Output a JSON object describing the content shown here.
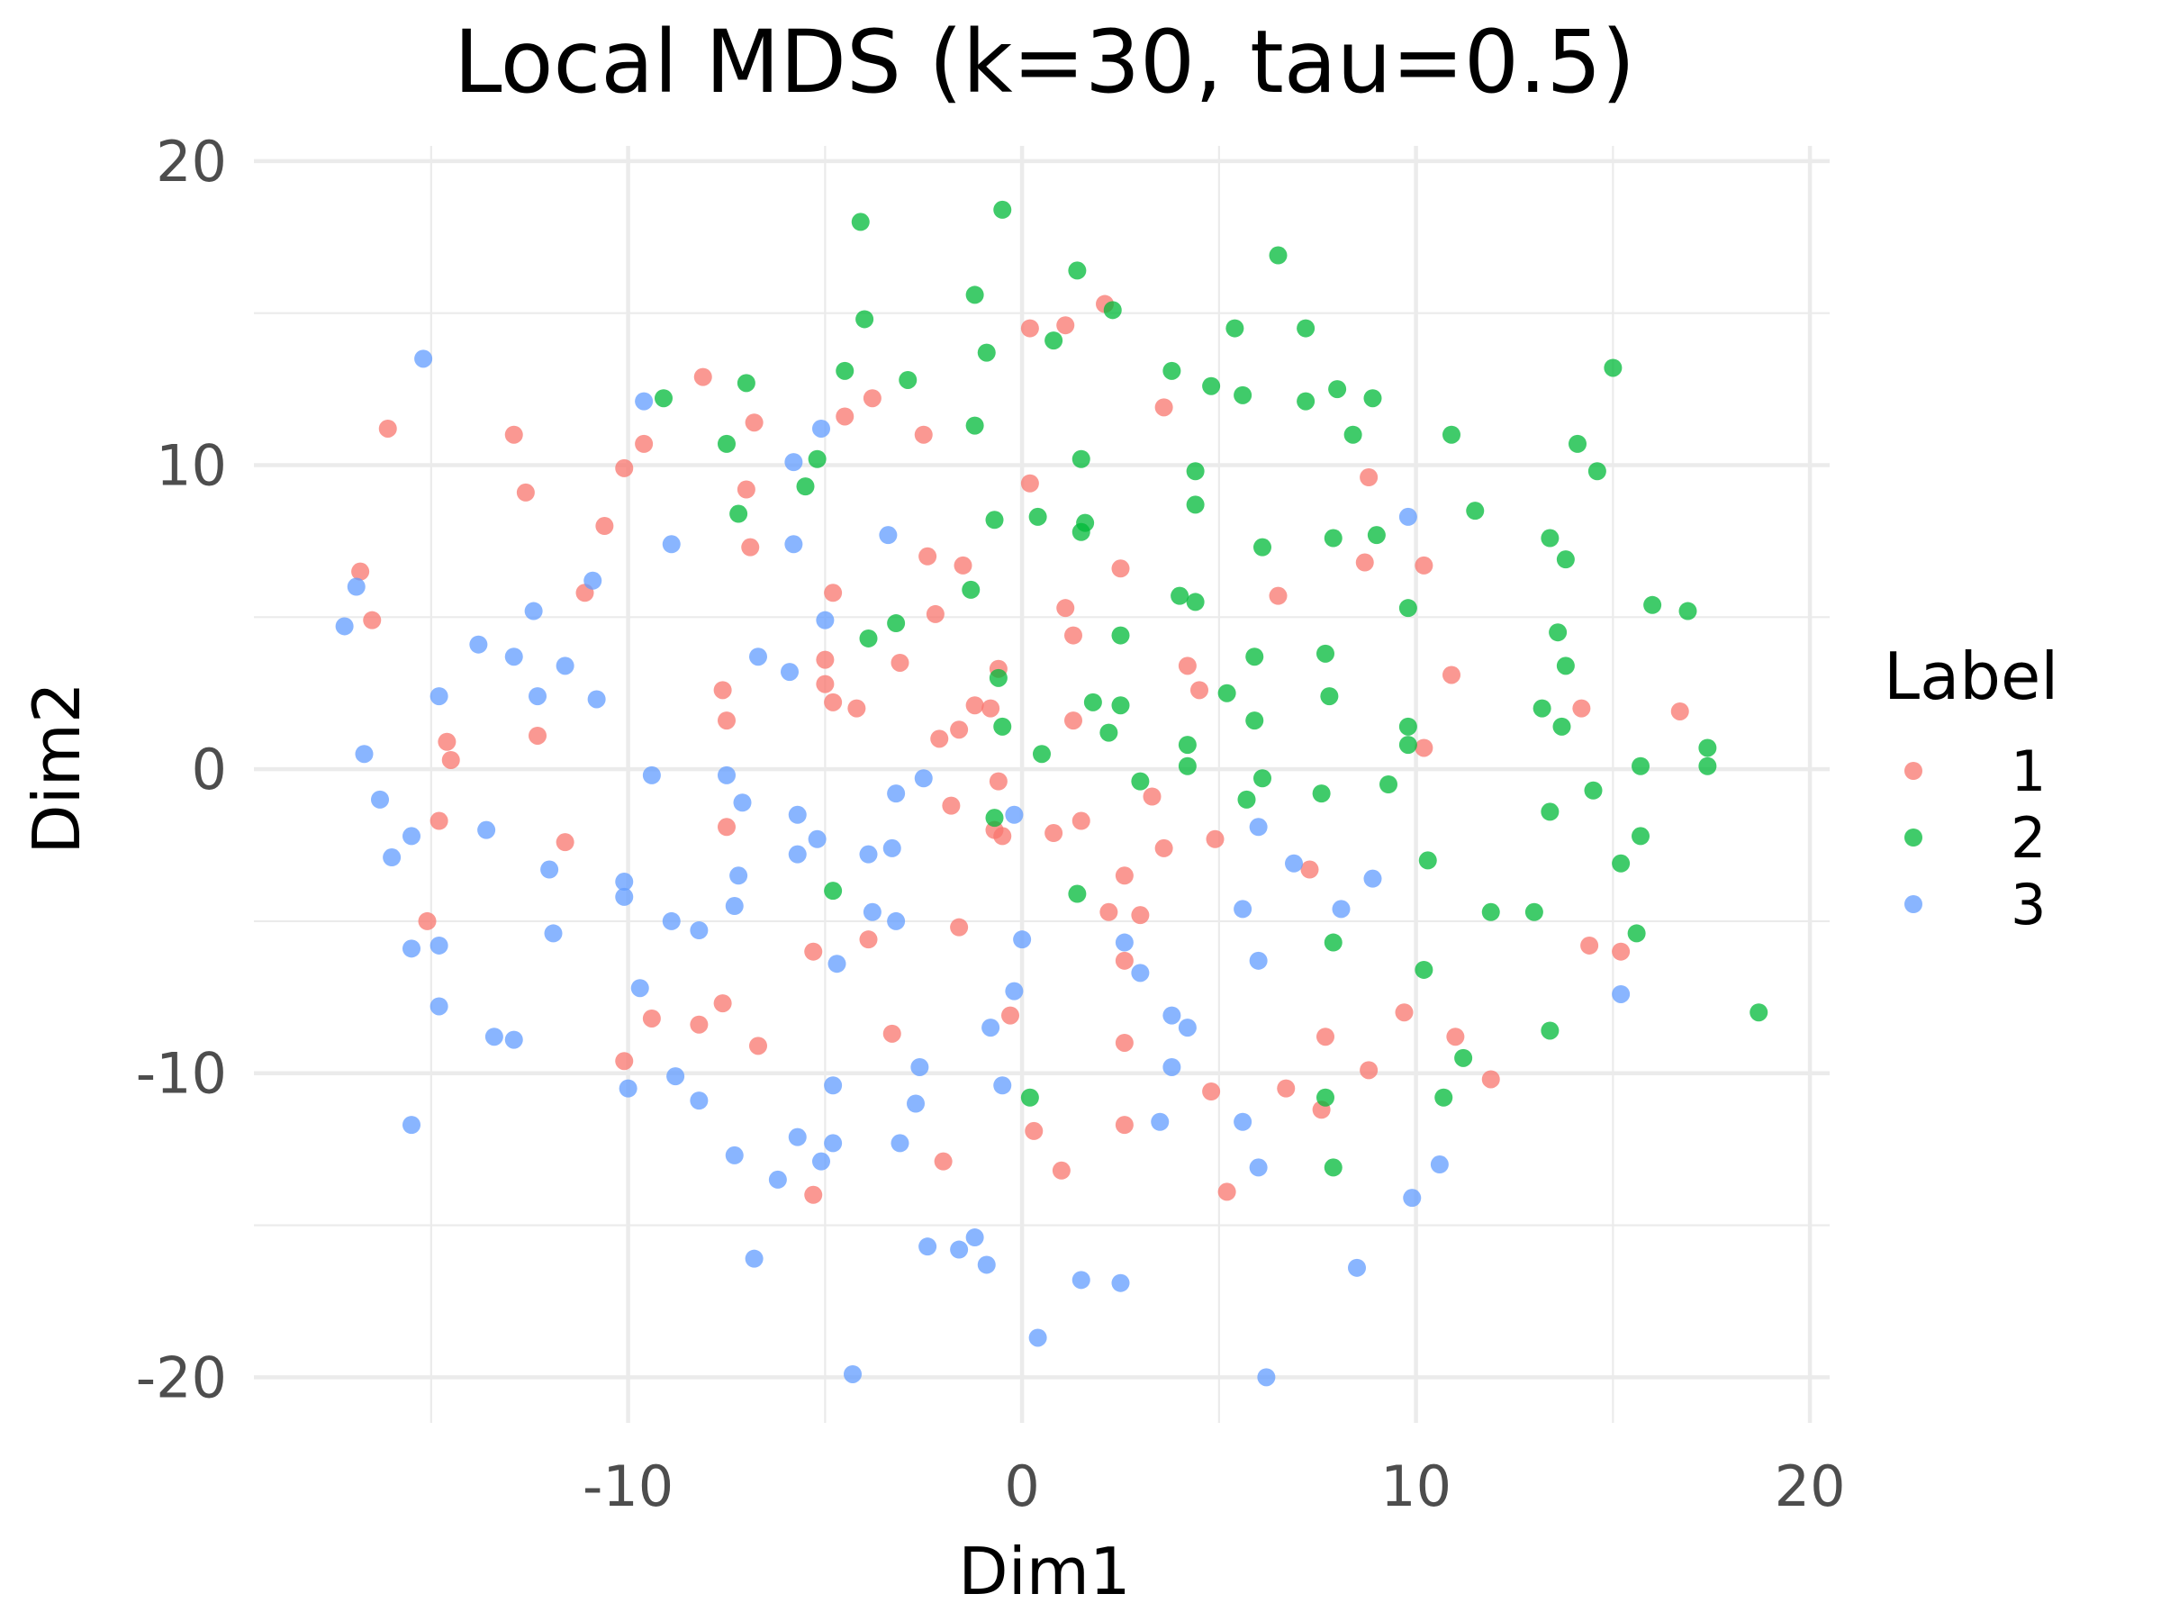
{
  "chart_data": {
    "type": "scatter",
    "title": "Local MDS (k=30, tau=0.5)",
    "xlabel": "Dim1",
    "ylabel": "Dim2",
    "xlim": [
      -19.5,
      20.5
    ],
    "ylim": [
      -21.5,
      20.5
    ],
    "xticks": [
      -10,
      0,
      10,
      20
    ],
    "yticks": [
      -20,
      -10,
      0,
      10,
      20
    ],
    "xtick_labels": [
      "-10",
      "0",
      "10",
      "20"
    ],
    "ytick_labels": [
      "-20",
      "-10",
      "0",
      "10",
      "20"
    ],
    "grid": true,
    "legend": {
      "title": "Label",
      "position": "right"
    },
    "series": [
      {
        "name": "1",
        "color": "#F8766D",
        "points": [
          [
            -16.8,
            6.5
          ],
          [
            -16.5,
            4.9
          ],
          [
            -16.1,
            11.2
          ],
          [
            -14.6,
            0.9
          ],
          [
            -14.5,
            0.3
          ],
          [
            -14.8,
            -1.7
          ],
          [
            -15.1,
            -5.0
          ],
          [
            -12.9,
            11.0
          ],
          [
            -12.6,
            9.1
          ],
          [
            -12.3,
            1.1
          ],
          [
            -11.6,
            -2.4
          ],
          [
            -11.1,
            5.8
          ],
          [
            -10.6,
            8.0
          ],
          [
            -10.1,
            9.9
          ],
          [
            -9.6,
            10.7
          ],
          [
            -10.1,
            -9.6
          ],
          [
            -9.4,
            -8.2
          ],
          [
            -8.1,
            12.9
          ],
          [
            -8.2,
            -8.4
          ],
          [
            -7.6,
            2.6
          ],
          [
            -7.5,
            1.6
          ],
          [
            -7.5,
            -1.9
          ],
          [
            -7.6,
            -7.7
          ],
          [
            -7.0,
            9.2
          ],
          [
            -6.9,
            7.3
          ],
          [
            -6.8,
            11.4
          ],
          [
            -6.7,
            -9.1
          ],
          [
            -5.3,
            -6.0
          ],
          [
            -5.3,
            -14.0
          ],
          [
            -5.0,
            2.8
          ],
          [
            -5.0,
            3.6
          ],
          [
            -4.8,
            2.2
          ],
          [
            -4.8,
            5.8
          ],
          [
            -4.5,
            11.6
          ],
          [
            -4.2,
            2.0
          ],
          [
            -3.8,
            12.2
          ],
          [
            -3.9,
            -5.6
          ],
          [
            -3.3,
            -8.7
          ],
          [
            -3.1,
            3.5
          ],
          [
            -2.5,
            11.0
          ],
          [
            -2.4,
            7.0
          ],
          [
            -2.2,
            5.1
          ],
          [
            -2.1,
            1.0
          ],
          [
            -2.0,
            -12.9
          ],
          [
            -1.8,
            -1.2
          ],
          [
            -1.6,
            1.3
          ],
          [
            -1.6,
            -5.2
          ],
          [
            -1.5,
            6.7
          ],
          [
            -1.2,
            2.1
          ],
          [
            -0.8,
            2.0
          ],
          [
            -0.7,
            -2.0
          ],
          [
            -0.6,
            -0.4
          ],
          [
            -0.6,
            3.3
          ],
          [
            -0.5,
            -2.2
          ],
          [
            -0.3,
            -8.1
          ],
          [
            0.2,
            9.4
          ],
          [
            0.2,
            14.5
          ],
          [
            0.3,
            -11.9
          ],
          [
            0.8,
            -2.1
          ],
          [
            1.0,
            -13.2
          ],
          [
            1.1,
            5.3
          ],
          [
            1.1,
            14.6
          ],
          [
            1.3,
            1.6
          ],
          [
            1.3,
            4.4
          ],
          [
            1.5,
            -1.7
          ],
          [
            2.1,
            15.3
          ],
          [
            2.2,
            -4.7
          ],
          [
            2.5,
            6.6
          ],
          [
            2.6,
            -3.5
          ],
          [
            2.6,
            -6.3
          ],
          [
            2.6,
            -9.0
          ],
          [
            2.6,
            -11.7
          ],
          [
            3.0,
            -4.8
          ],
          [
            3.3,
            -0.9
          ],
          [
            3.6,
            11.9
          ],
          [
            3.6,
            -2.6
          ],
          [
            4.2,
            3.4
          ],
          [
            4.5,
            2.6
          ],
          [
            4.9,
            -2.3
          ],
          [
            4.8,
            -10.6
          ],
          [
            5.2,
            -13.9
          ],
          [
            6.5,
            5.7
          ],
          [
            6.7,
            -10.5
          ],
          [
            7.3,
            -3.3
          ],
          [
            7.6,
            -11.2
          ],
          [
            7.7,
            -8.8
          ],
          [
            8.7,
            6.8
          ],
          [
            8.8,
            9.6
          ],
          [
            8.8,
            -9.9
          ],
          [
            9.7,
            -8.0
          ],
          [
            10.2,
            6.7
          ],
          [
            10.2,
            0.7
          ],
          [
            10.9,
            3.1
          ],
          [
            11.0,
            -8.8
          ],
          [
            11.9,
            -10.2
          ],
          [
            14.2,
            2.0
          ],
          [
            14.4,
            -5.8
          ],
          [
            15.2,
            -6.0
          ],
          [
            16.7,
            1.9
          ]
        ]
      },
      {
        "name": "2",
        "color": "#00BA38",
        "points": [
          [
            -4.1,
            18.0
          ],
          [
            -0.5,
            18.4
          ],
          [
            6.5,
            16.9
          ],
          [
            1.4,
            16.4
          ],
          [
            -1.2,
            15.6
          ],
          [
            2.3,
            15.1
          ],
          [
            -4.0,
            14.8
          ],
          [
            5.4,
            14.5
          ],
          [
            7.2,
            14.5
          ],
          [
            0.8,
            14.1
          ],
          [
            -0.9,
            13.7
          ],
          [
            -4.5,
            13.1
          ],
          [
            3.8,
            13.1
          ],
          [
            15.0,
            13.2
          ],
          [
            -2.9,
            12.8
          ],
          [
            -7.0,
            12.7
          ],
          [
            4.8,
            12.6
          ],
          [
            8.0,
            12.5
          ],
          [
            5.6,
            12.3
          ],
          [
            8.9,
            12.2
          ],
          [
            -9.1,
            12.2
          ],
          [
            7.2,
            12.1
          ],
          [
            -7.5,
            10.7
          ],
          [
            -1.2,
            11.3
          ],
          [
            8.4,
            11.0
          ],
          [
            10.9,
            11.0
          ],
          [
            14.1,
            10.7
          ],
          [
            -5.2,
            10.2
          ],
          [
            1.5,
            10.2
          ],
          [
            4.4,
            9.8
          ],
          [
            14.6,
            9.8
          ],
          [
            -5.5,
            9.3
          ],
          [
            4.4,
            8.7
          ],
          [
            -7.2,
            8.4
          ],
          [
            -0.7,
            8.2
          ],
          [
            0.4,
            8.3
          ],
          [
            1.6,
            8.1
          ],
          [
            1.5,
            7.8
          ],
          [
            11.5,
            8.5
          ],
          [
            9.0,
            7.7
          ],
          [
            7.9,
            7.6
          ],
          [
            13.4,
            7.6
          ],
          [
            6.1,
            7.3
          ],
          [
            13.8,
            6.9
          ],
          [
            -1.3,
            5.9
          ],
          [
            4.0,
            5.7
          ],
          [
            4.4,
            5.5
          ],
          [
            9.8,
            5.3
          ],
          [
            16.0,
            5.4
          ],
          [
            16.9,
            5.2
          ],
          [
            -3.2,
            4.8
          ],
          [
            -3.9,
            4.3
          ],
          [
            2.5,
            4.4
          ],
          [
            13.6,
            4.5
          ],
          [
            5.9,
            3.7
          ],
          [
            7.7,
            3.8
          ],
          [
            13.8,
            3.4
          ],
          [
            -0.6,
            3.0
          ],
          [
            5.2,
            2.5
          ],
          [
            7.8,
            2.4
          ],
          [
            1.8,
            2.2
          ],
          [
            2.5,
            2.1
          ],
          [
            13.2,
            2.0
          ],
          [
            -0.5,
            1.4
          ],
          [
            5.9,
            1.6
          ],
          [
            9.8,
            1.4
          ],
          [
            13.7,
            1.4
          ],
          [
            2.2,
            1.2
          ],
          [
            4.2,
            0.8
          ],
          [
            9.8,
            0.8
          ],
          [
            17.4,
            0.7
          ],
          [
            0.5,
            0.5
          ],
          [
            4.2,
            0.1
          ],
          [
            15.7,
            0.1
          ],
          [
            17.4,
            0.1
          ],
          [
            3.0,
            -0.4
          ],
          [
            6.1,
            -0.3
          ],
          [
            9.3,
            -0.5
          ],
          [
            14.5,
            -0.7
          ],
          [
            7.6,
            -0.8
          ],
          [
            5.7,
            -1.0
          ],
          [
            13.4,
            -1.4
          ],
          [
            -0.7,
            -1.6
          ],
          [
            15.7,
            -2.2
          ],
          [
            10.3,
            -3.0
          ],
          [
            15.2,
            -3.1
          ],
          [
            -4.8,
            -4.0
          ],
          [
            1.4,
            -4.1
          ],
          [
            11.9,
            -4.7
          ],
          [
            13.0,
            -4.7
          ],
          [
            15.6,
            -5.4
          ],
          [
            7.9,
            -5.7
          ],
          [
            10.2,
            -6.6
          ],
          [
            18.7,
            -8.0
          ],
          [
            13.4,
            -8.6
          ],
          [
            11.2,
            -9.5
          ],
          [
            0.2,
            -10.8
          ],
          [
            7.7,
            -10.8
          ],
          [
            10.7,
            -10.8
          ],
          [
            7.9,
            -13.1
          ]
        ]
      },
      {
        "name": "3",
        "color": "#619CFF",
        "points": [
          [
            -15.2,
            13.5
          ],
          [
            -9.6,
            12.1
          ],
          [
            -5.1,
            11.2
          ],
          [
            -5.8,
            10.1
          ],
          [
            9.8,
            8.3
          ],
          [
            -8.9,
            7.4
          ],
          [
            -5.8,
            7.4
          ],
          [
            -3.4,
            7.7
          ],
          [
            -17.2,
            4.7
          ],
          [
            -16.9,
            6.0
          ],
          [
            -10.9,
            6.2
          ],
          [
            -12.4,
            5.2
          ],
          [
            -13.8,
            4.1
          ],
          [
            -12.9,
            3.7
          ],
          [
            -11.6,
            3.4
          ],
          [
            -5.0,
            4.9
          ],
          [
            -6.7,
            3.7
          ],
          [
            -5.9,
            3.2
          ],
          [
            -14.8,
            2.4
          ],
          [
            -12.3,
            2.4
          ],
          [
            -10.8,
            2.3
          ],
          [
            -16.7,
            0.5
          ],
          [
            -16.3,
            -1.0
          ],
          [
            -9.4,
            -0.2
          ],
          [
            -7.5,
            -0.2
          ],
          [
            -7.1,
            -1.1
          ],
          [
            -2.5,
            -0.3
          ],
          [
            -3.2,
            -0.8
          ],
          [
            -0.2,
            -1.5
          ],
          [
            -15.5,
            -2.2
          ],
          [
            -16.0,
            -2.9
          ],
          [
            -13.6,
            -2.0
          ],
          [
            -5.7,
            -1.5
          ],
          [
            -5.2,
            -2.3
          ],
          [
            -5.7,
            -2.8
          ],
          [
            -3.9,
            -2.8
          ],
          [
            -3.3,
            -2.6
          ],
          [
            6.0,
            -1.9
          ],
          [
            -12.0,
            -3.3
          ],
          [
            -10.1,
            -3.7
          ],
          [
            -7.2,
            -3.5
          ],
          [
            6.9,
            -3.1
          ],
          [
            8.9,
            -3.6
          ],
          [
            -10.1,
            -4.2
          ],
          [
            -7.3,
            -4.5
          ],
          [
            -3.8,
            -4.7
          ],
          [
            -3.2,
            -5.0
          ],
          [
            -8.9,
            -5.0
          ],
          [
            -8.2,
            -5.3
          ],
          [
            -11.9,
            -5.4
          ],
          [
            0.0,
            -5.6
          ],
          [
            5.6,
            -4.6
          ],
          [
            8.1,
            -4.6
          ],
          [
            -15.5,
            -5.9
          ],
          [
            -14.8,
            -5.8
          ],
          [
            -4.7,
            -6.4
          ],
          [
            6.0,
            -6.3
          ],
          [
            2.6,
            -5.7
          ],
          [
            3.0,
            -6.7
          ],
          [
            -9.7,
            -7.2
          ],
          [
            -0.2,
            -7.3
          ],
          [
            15.2,
            -7.4
          ],
          [
            -14.8,
            -7.8
          ],
          [
            3.8,
            -8.1
          ],
          [
            4.2,
            -8.5
          ],
          [
            -0.8,
            -8.5
          ],
          [
            -13.4,
            -8.8
          ],
          [
            -12.9,
            -8.9
          ],
          [
            -2.6,
            -9.8
          ],
          [
            3.8,
            -9.8
          ],
          [
            -10.0,
            -10.5
          ],
          [
            -8.8,
            -10.1
          ],
          [
            -8.2,
            -10.9
          ],
          [
            -4.8,
            -10.4
          ],
          [
            -0.5,
            -10.4
          ],
          [
            -2.7,
            -11.0
          ],
          [
            3.5,
            -11.6
          ],
          [
            5.6,
            -11.6
          ],
          [
            -15.5,
            -11.7
          ],
          [
            -5.7,
            -12.1
          ],
          [
            -4.8,
            -12.3
          ],
          [
            -3.1,
            -12.3
          ],
          [
            -7.3,
            -12.7
          ],
          [
            -5.1,
            -12.9
          ],
          [
            10.6,
            -13.0
          ],
          [
            6.0,
            -13.1
          ],
          [
            -6.2,
            -13.5
          ],
          [
            9.9,
            -14.1
          ],
          [
            -1.2,
            -15.4
          ],
          [
            -2.4,
            -15.7
          ],
          [
            -1.6,
            -15.8
          ],
          [
            -6.8,
            -16.1
          ],
          [
            -0.9,
            -16.3
          ],
          [
            8.5,
            -16.4
          ],
          [
            1.5,
            -16.8
          ],
          [
            2.5,
            -16.9
          ],
          [
            0.4,
            -18.7
          ],
          [
            -4.3,
            -19.9
          ],
          [
            6.2,
            -20.0
          ]
        ]
      }
    ]
  }
}
